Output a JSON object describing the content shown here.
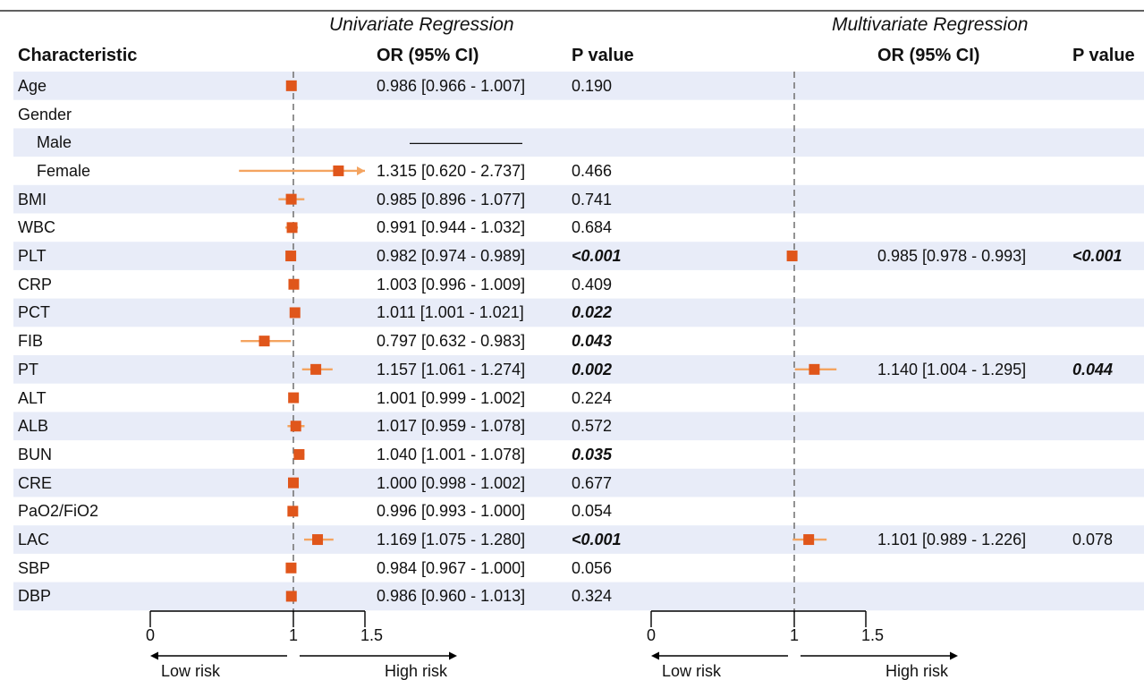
{
  "chart_data": [
    {
      "type": "forest",
      "title": "Univariate Regression",
      "columns": {
        "characteristic": "Characteristic",
        "or": "OR (95% CI)",
        "p": "P value"
      },
      "xlim": [
        0,
        1.5
      ],
      "xticks": [
        "0",
        "1",
        "1.5"
      ],
      "reference_line": 1,
      "direction_labels": [
        "Low risk",
        "High risk"
      ],
      "rows": [
        {
          "label": "Age",
          "indent": false,
          "or": 0.986,
          "lower": 0.966,
          "upper": 1.007,
          "or_text": "0.986 [0.966 - 1.007]",
          "p_text": "0.190",
          "significant": false
        },
        {
          "label": "Gender",
          "indent": false,
          "or": null,
          "lower": null,
          "upper": null,
          "or_text": "",
          "p_text": "",
          "significant": false
        },
        {
          "label": "Male",
          "indent": true,
          "or": null,
          "lower": null,
          "upper": null,
          "or_text": "———————",
          "p_text": "",
          "significant": false
        },
        {
          "label": "Female",
          "indent": true,
          "or": 1.315,
          "lower": 0.62,
          "upper": 2.737,
          "or_text": "1.315 [0.620 - 2.737]",
          "p_text": "0.466",
          "significant": false
        },
        {
          "label": "BMI",
          "indent": false,
          "or": 0.985,
          "lower": 0.896,
          "upper": 1.077,
          "or_text": "0.985 [0.896 - 1.077]",
          "p_text": "0.741",
          "significant": false
        },
        {
          "label": "WBC",
          "indent": false,
          "or": 0.991,
          "lower": 0.944,
          "upper": 1.032,
          "or_text": "0.991 [0.944 - 1.032]",
          "p_text": "0.684",
          "significant": false
        },
        {
          "label": "PLT",
          "indent": false,
          "or": 0.982,
          "lower": 0.974,
          "upper": 0.989,
          "or_text": "0.982 [0.974 - 0.989]",
          "p_text": "<0.001",
          "significant": true
        },
        {
          "label": "CRP",
          "indent": false,
          "or": 1.003,
          "lower": 0.996,
          "upper": 1.009,
          "or_text": "1.003 [0.996 - 1.009]",
          "p_text": "0.409",
          "significant": false
        },
        {
          "label": "PCT",
          "indent": false,
          "or": 1.011,
          "lower": 1.001,
          "upper": 1.021,
          "or_text": "1.011 [1.001 - 1.021]",
          "p_text": "0.022",
          "significant": true
        },
        {
          "label": "FIB",
          "indent": false,
          "or": 0.797,
          "lower": 0.632,
          "upper": 0.983,
          "or_text": "0.797 [0.632 - 0.983]",
          "p_text": "0.043",
          "significant": true
        },
        {
          "label": "PT",
          "indent": false,
          "or": 1.157,
          "lower": 1.061,
          "upper": 1.274,
          "or_text": "1.157 [1.061 - 1.274]",
          "p_text": "0.002",
          "significant": true
        },
        {
          "label": "ALT",
          "indent": false,
          "or": 1.001,
          "lower": 0.999,
          "upper": 1.002,
          "or_text": "1.001 [0.999 - 1.002]",
          "p_text": "0.224",
          "significant": false
        },
        {
          "label": "ALB",
          "indent": false,
          "or": 1.017,
          "lower": 0.959,
          "upper": 1.078,
          "or_text": "1.017 [0.959 - 1.078]",
          "p_text": "0.572",
          "significant": false
        },
        {
          "label": "BUN",
          "indent": false,
          "or": 1.04,
          "lower": 1.001,
          "upper": 1.078,
          "or_text": "1.040 [1.001 - 1.078]",
          "p_text": "0.035",
          "significant": true
        },
        {
          "label": "CRE",
          "indent": false,
          "or": 1.0,
          "lower": 0.998,
          "upper": 1.002,
          "or_text": "1.000 [0.998 - 1.002]",
          "p_text": "0.677",
          "significant": false
        },
        {
          "label": "PaO2/FiO2",
          "indent": false,
          "or": 0.996,
          "lower": 0.993,
          "upper": 1.0,
          "or_text": "0.996 [0.993 - 1.000]",
          "p_text": "0.054",
          "significant": false
        },
        {
          "label": "LAC",
          "indent": false,
          "or": 1.169,
          "lower": 1.075,
          "upper": 1.28,
          "or_text": "1.169 [1.075 - 1.280]",
          "p_text": "<0.001",
          "significant": true
        },
        {
          "label": "SBP",
          "indent": false,
          "or": 0.984,
          "lower": 0.967,
          "upper": 1.0,
          "or_text": "0.984 [0.967 - 1.000]",
          "p_text": "0.056",
          "significant": false
        },
        {
          "label": "DBP",
          "indent": false,
          "or": 0.986,
          "lower": 0.96,
          "upper": 1.013,
          "or_text": "0.986 [0.960 - 1.013]",
          "p_text": "0.324",
          "significant": false
        }
      ]
    },
    {
      "type": "forest",
      "title": "Multivariate Regression",
      "columns": {
        "or": "OR (95% CI)",
        "p": "P value"
      },
      "xlim": [
        0,
        1.5
      ],
      "xticks": [
        "0",
        "1",
        "1.5"
      ],
      "reference_line": 1,
      "direction_labels": [
        "Low risk",
        "High risk"
      ],
      "rows": [
        {
          "label": "PLT",
          "or": 0.985,
          "lower": 0.978,
          "upper": 0.993,
          "or_text": "0.985 [0.978 - 0.993]",
          "p_text": "<0.001",
          "significant": true
        },
        {
          "label": "PT",
          "or": 1.14,
          "lower": 1.004,
          "upper": 1.295,
          "or_text": "1.140 [1.004 - 1.295]",
          "p_text": "0.044",
          "significant": true
        },
        {
          "label": "LAC",
          "or": 1.101,
          "lower": 0.989,
          "upper": 1.226,
          "or_text": "1.101 [0.989 - 1.226]",
          "p_text": "0.078",
          "significant": false
        }
      ]
    }
  ],
  "colors": {
    "stripe": "#e8ecf8",
    "point": "#e0561b",
    "ci_line": "#f4a460",
    "reference_line": "#777777",
    "text": "#111111",
    "axis": "#000000"
  }
}
